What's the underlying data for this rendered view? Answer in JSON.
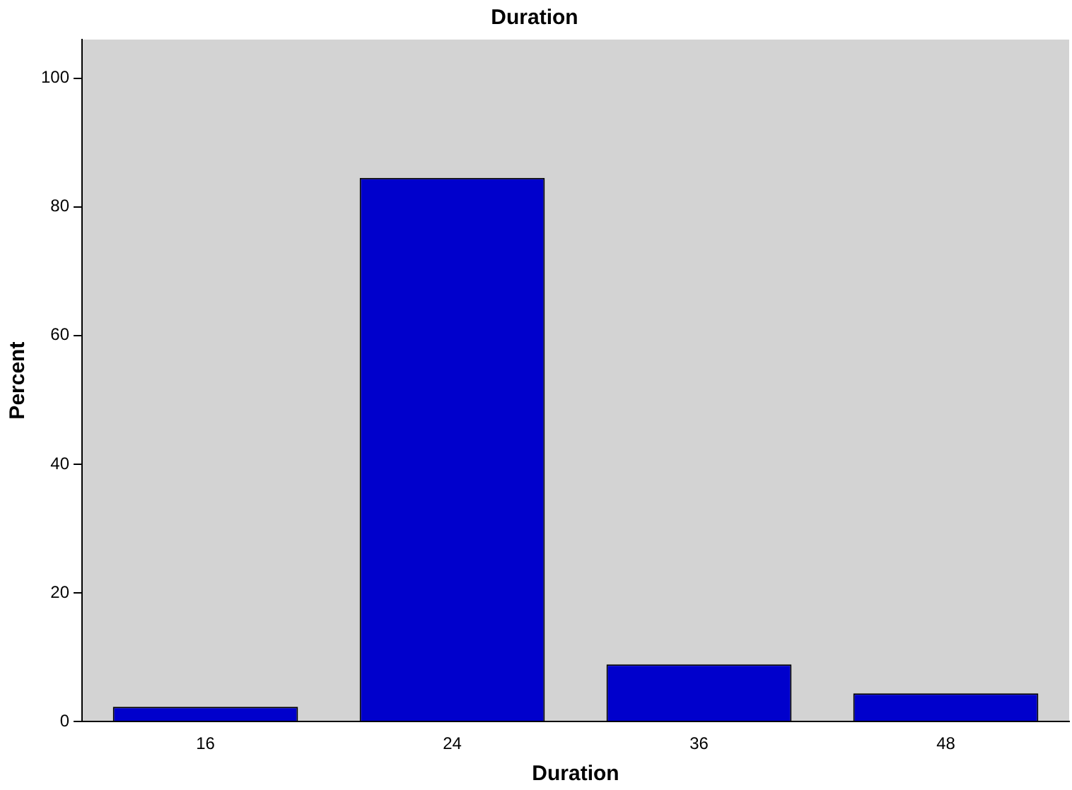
{
  "chart_data": {
    "type": "bar",
    "title": "Duration",
    "xlabel": "Duration",
    "ylabel": "Percent",
    "categories": [
      "16",
      "24",
      "36",
      "48"
    ],
    "values": [
      2.3,
      84.5,
      8.9,
      4.4
    ],
    "color": "#0000cc",
    "ylim": [
      0,
      106
    ],
    "yticks": [
      0,
      20,
      40,
      60,
      80,
      100
    ],
    "grid": false,
    "legend": false
  }
}
